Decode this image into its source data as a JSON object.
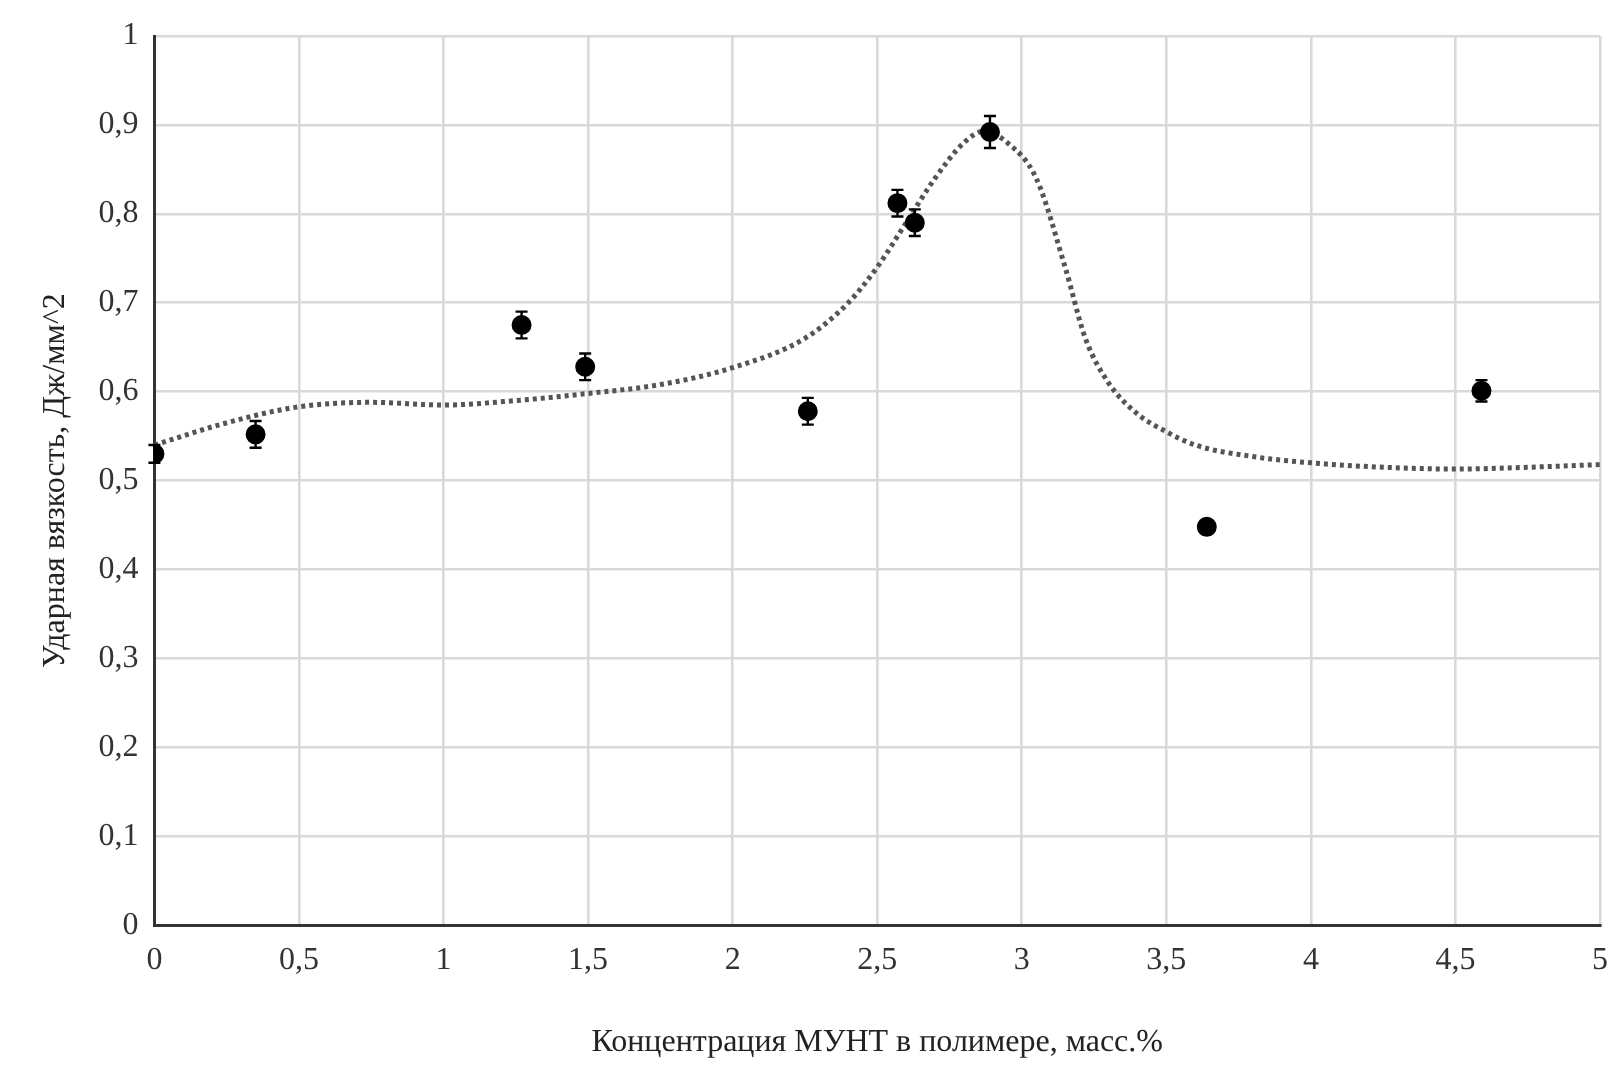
{
  "chart_data": {
    "type": "scatter",
    "xlabel": "Концентрация МУНТ в полимере, масс.%",
    "ylabel": "Ударная вязкость, Дж/мм^2",
    "xlim": [
      0,
      5
    ],
    "xticks": [
      0,
      {
        "value": 0.5,
        "label": "0,5"
      },
      1,
      {
        "value": 1.5,
        "label": "1,5"
      },
      2,
      {
        "value": 2.5,
        "label": "2,5"
      },
      3,
      {
        "value": 3.5,
        "label": "3,5"
      },
      4,
      {
        "value": 4.5,
        "label": "4,5"
      },
      5
    ],
    "ylim": [
      0,
      1
    ],
    "yticks": [
      0,
      {
        "value": 0.1,
        "label": "0,1"
      },
      {
        "value": 0.2,
        "label": "0,2"
      },
      {
        "value": 0.3,
        "label": "0,3"
      },
      {
        "value": 0.4,
        "label": "0,4"
      },
      {
        "value": 0.5,
        "label": "0,5"
      },
      {
        "value": 0.6,
        "label": "0,6"
      },
      {
        "value": 0.7,
        "label": "0,7"
      },
      {
        "value": 0.8,
        "label": "0,8"
      },
      {
        "value": 0.9,
        "label": "0,9"
      },
      1
    ],
    "grid": true,
    "legend": false,
    "series": [
      {
        "color": "#000000",
        "marker": "circle",
        "x": [
          0,
          0.35,
          1.27,
          1.49,
          2.26,
          2.57,
          2.63,
          2.89,
          3.64,
          4.59
        ],
        "values": [
          0.53,
          0.552,
          0.675,
          0.628,
          0.578,
          0.812,
          0.79,
          0.892,
          0.448,
          0.601
        ],
        "errors": [
          0.01,
          0.015,
          0.015,
          0.015,
          0.015,
          0.015,
          0.015,
          0.018,
          0.007,
          0.012
        ]
      },
      {
        "type": "line",
        "color": "#555555",
        "line_style": "dotted",
        "marker": "none",
        "x": [
          0,
          0.25,
          0.5,
          0.75,
          1,
          1.25,
          1.5,
          1.75,
          2,
          2.25,
          2.4,
          2.5,
          2.6,
          2.7,
          2.8,
          2.87,
          2.95,
          3.05,
          3.15,
          3.22,
          3.3,
          3.4,
          3.5,
          3.6,
          3.8,
          4,
          4.25,
          4.5,
          4.75,
          5
        ],
        "values": [
          0.54,
          0.565,
          0.583,
          0.588,
          0.585,
          0.59,
          0.598,
          0.608,
          0.627,
          0.66,
          0.7,
          0.74,
          0.79,
          0.84,
          0.88,
          0.893,
          0.88,
          0.84,
          0.74,
          0.66,
          0.61,
          0.575,
          0.555,
          0.54,
          0.527,
          0.52,
          0.515,
          0.513,
          0.515,
          0.518
        ]
      }
    ]
  }
}
